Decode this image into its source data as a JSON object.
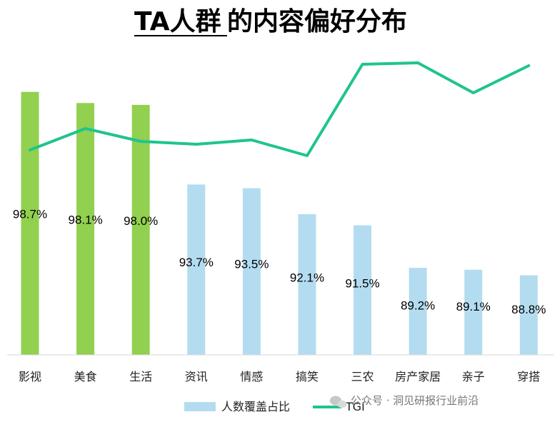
{
  "chart_data": {
    "type": "bar",
    "title": "TA人群的内容偏好分布",
    "title_underlined": "TA人群",
    "title_rest": "的内容偏好分布",
    "categories": [
      "影视",
      "美食",
      "生活",
      "资讯",
      "情感",
      "搞笑",
      "三农",
      "房产家居",
      "亲子",
      "穿搭"
    ],
    "series": [
      {
        "name": "人数覆盖占比",
        "kind": "bar",
        "values": [
          98.7,
          98.1,
          98.0,
          93.7,
          93.5,
          92.1,
          91.5,
          89.2,
          89.1,
          88.8
        ],
        "labels": [
          "98.7%",
          "98.1%",
          "98.0%",
          "93.7%",
          "93.5%",
          "92.1%",
          "91.5%",
          "89.2%",
          "89.1%",
          "88.8%"
        ],
        "highlight_count": 3,
        "highlight_color": "#92d050",
        "color": "#b4dcf0"
      },
      {
        "name": "TGI",
        "kind": "line",
        "values": [
          135,
          150,
          141,
          139,
          142,
          131,
          195,
          196,
          175,
          194
        ],
        "color": "#1fc48e"
      }
    ],
    "ylim": [
      84.5,
      100
    ],
    "tgi_range": [
      90,
      210
    ],
    "legend": [
      "人数覆盖占比",
      "TGI"
    ],
    "legend_position": "bottom",
    "grid": false
  },
  "watermark": "公众号 · 洞见研报行业前沿"
}
